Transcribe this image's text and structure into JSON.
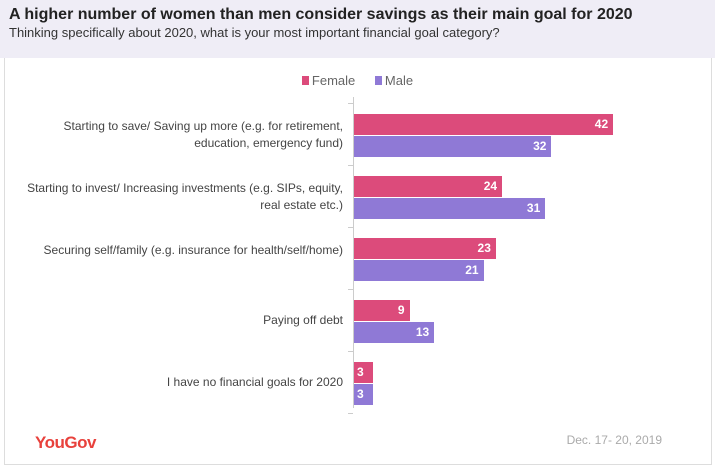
{
  "chart_data": {
    "type": "bar",
    "orientation": "horizontal",
    "title": "A higher number of women than men consider savings as their main goal for 2020",
    "subtitle": "Thinking specifically about 2020, what is your most important financial goal category?",
    "categories": [
      "Starting to save/ Saving up more (e.g. for retirement, education, emergency fund)",
      "Starting to invest/ Increasing investments (e.g. SIPs, equity, real estate etc.)",
      "Securing self/family (e.g. insurance for health/self/home)",
      "Paying off debt",
      "I have no financial goals for 2020"
    ],
    "series": [
      {
        "name": "Female",
        "color": "#dc4b7b",
        "values": [
          42,
          24,
          23,
          9,
          3
        ]
      },
      {
        "name": "Male",
        "color": "#8f79d6",
        "values": [
          32,
          31,
          21,
          13,
          3
        ]
      }
    ],
    "legend": "top-center",
    "grid": false
  },
  "footer": {
    "logo": "YouGov",
    "date": "Dec. 17- 20, 2019"
  }
}
